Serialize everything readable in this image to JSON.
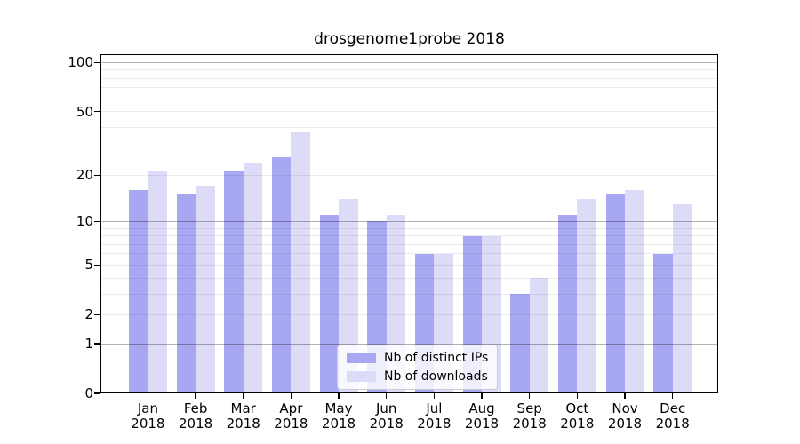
{
  "title": "drosgenome1probe 2018",
  "colors": {
    "distinct_ips_bar": "#a8a8f2",
    "downloads_bar": "#dcdcf8",
    "grid_major": "rgba(0,0,0,0.30)",
    "grid_minor": "rgba(0,0,0,0.08)",
    "axis": "#000000",
    "legend_border": "#cccccc"
  },
  "legend": {
    "items": [
      {
        "label": "Nb of distinct IPs",
        "color": "#a8a8f2"
      },
      {
        "label": "Nb of downloads",
        "color": "#dcdcf8"
      }
    ],
    "position": "lower center"
  },
  "chart_data": {
    "type": "bar",
    "title": "drosgenome1probe 2018",
    "categories": [
      "Jan 2018",
      "Feb 2018",
      "Mar 2018",
      "Apr 2018",
      "May 2018",
      "Jun 2018",
      "Jul 2018",
      "Aug 2018",
      "Sep 2018",
      "Oct 2018",
      "Nov 2018",
      "Dec 2018"
    ],
    "x_tick_months": [
      "Jan",
      "Feb",
      "Mar",
      "Apr",
      "May",
      "Jun",
      "Jul",
      "Aug",
      "Sep",
      "Oct",
      "Nov",
      "Dec"
    ],
    "x_tick_year": "2018",
    "series": [
      {
        "name": "Nb of distinct IPs",
        "color": "#a8a8f2",
        "values": [
          16,
          15,
          21,
          26,
          11,
          10,
          6,
          8,
          3,
          11,
          15,
          6
        ]
      },
      {
        "name": "Nb of downloads",
        "color": "#dcdcf8",
        "values": [
          21,
          17,
          24,
          37,
          14,
          11,
          6,
          8,
          4,
          14,
          16,
          13
        ]
      }
    ],
    "xlabel": "",
    "ylabel": "",
    "y_scale": "log10(1+y)",
    "y_tick_labels": [
      0,
      1,
      2,
      5,
      10,
      20,
      50,
      100
    ],
    "y_major_grid": [
      1,
      10,
      100
    ],
    "y_minor_grid": [
      2,
      3,
      4,
      5,
      6,
      7,
      8,
      9,
      20,
      30,
      40,
      50,
      60,
      70,
      80,
      90
    ],
    "ylim": [
      0,
      113
    ],
    "grid": "on",
    "legend_position": "lower center"
  }
}
